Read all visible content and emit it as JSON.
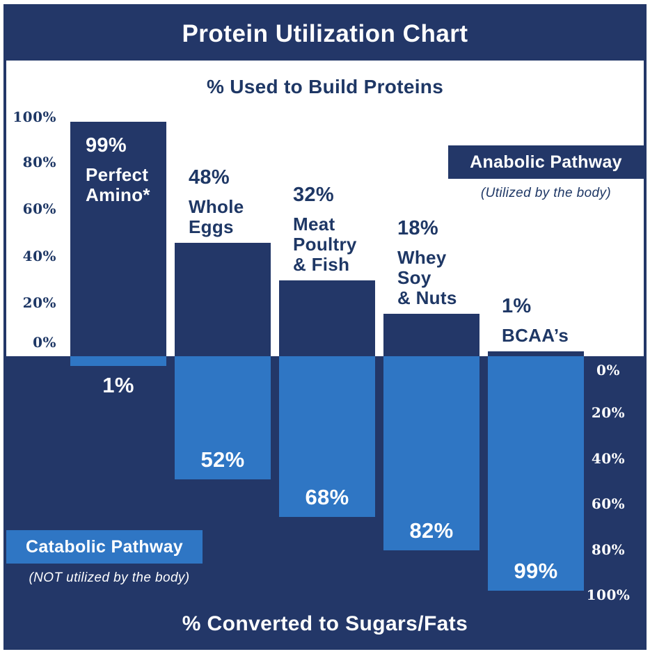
{
  "title": "Protein Utilization Chart",
  "top_section": {
    "subtitle": "% Used to Build Proteins",
    "axis_ticks": [
      "100%",
      "80%",
      "60%",
      "40%",
      "20%",
      "0%"
    ],
    "legend": {
      "label": "Anabolic Pathway",
      "caption": "(Utilized by the body)"
    }
  },
  "bottom_section": {
    "title": "% Converted to Sugars/Fats",
    "axis_ticks": [
      "0%",
      "20%",
      "40%",
      "60%",
      "80%",
      "100%"
    ],
    "legend": {
      "label": "Catabolic Pathway",
      "caption": "(NOT utilized by the body)"
    }
  },
  "colors": {
    "navy": "#233768",
    "light_blue": "#2F76C4",
    "text_navy": "#1E3765",
    "white": "#FFFFFF"
  },
  "chart_data": {
    "type": "bar",
    "categories": [
      "Perfect Amino*",
      "Whole Eggs",
      "Meat Poultry & Fish",
      "Whey Soy & Nuts",
      "BCAA’s"
    ],
    "category_lines": [
      [
        "Perfect",
        "Amino*"
      ],
      [
        "Whole",
        "Eggs"
      ],
      [
        "Meat",
        "Poultry",
        "& Fish"
      ],
      [
        "Whey",
        "Soy",
        "& Nuts"
      ],
      [
        "BCAA’s"
      ]
    ],
    "series": [
      {
        "name": "% Used to Build Proteins (Anabolic Pathway)",
        "values": [
          99,
          48,
          32,
          18,
          1
        ],
        "labels": [
          "99%",
          "48%",
          "32%",
          "18%",
          "1%"
        ]
      },
      {
        "name": "% Converted to Sugars/Fats (Catabolic Pathway)",
        "values": [
          1,
          52,
          68,
          82,
          99
        ],
        "labels": [
          "1%",
          "52%",
          "68%",
          "82%",
          "99%"
        ]
      }
    ],
    "ylim_top": [
      0,
      100
    ],
    "ylim_bottom": [
      0,
      100
    ],
    "grid": false,
    "legend_position": {
      "anabolic": "top-right-of-upper-panel",
      "catabolic": "bottom-left-of-lower-panel"
    }
  }
}
